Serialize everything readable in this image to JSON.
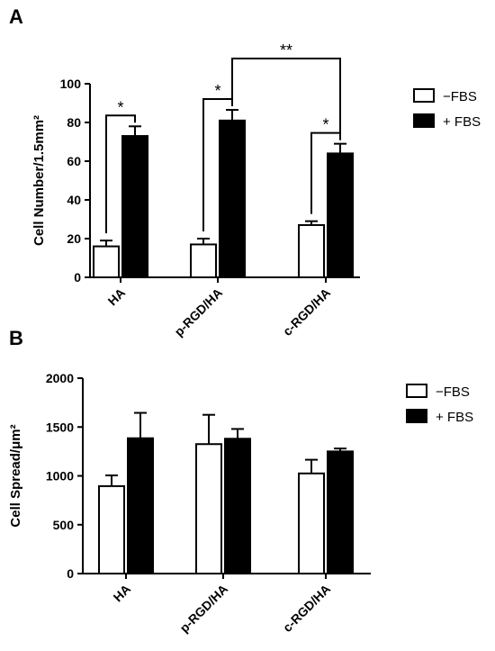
{
  "chart_data": [
    {
      "panel": "A",
      "type": "bar",
      "categories": [
        "HA",
        "p-RGD/HA",
        "c-RGD/HA"
      ],
      "ylabel": "Cell Number/1.5mm²",
      "ylim": [
        0,
        100
      ],
      "yticks": [
        0,
        20,
        40,
        60,
        80,
        100
      ],
      "legend_placement": "top-right",
      "series": [
        {
          "name": "FBS",
          "legend_label": "−FBS",
          "fill": "#ffffff",
          "values": [
            16,
            17,
            27
          ],
          "errors": [
            3,
            3,
            2
          ]
        },
        {
          "name": "+ FBS",
          "legend_label": "+ FBS",
          "fill": "#000000",
          "values": [
            73,
            81,
            64
          ],
          "errors": [
            5,
            5.5,
            5
          ]
        }
      ],
      "annotations": [
        {
          "label": "*",
          "from": [
            0,
            0
          ],
          "to": [
            0,
            1
          ]
        },
        {
          "label": "*",
          "from": [
            1,
            0
          ],
          "to": [
            1,
            1
          ]
        },
        {
          "label": "*",
          "from": [
            2,
            0
          ],
          "to": [
            2,
            1
          ]
        },
        {
          "label": "**",
          "from": [
            1,
            1
          ],
          "to": [
            2,
            1
          ]
        }
      ]
    },
    {
      "panel": "B",
      "type": "bar",
      "categories": [
        "HA",
        "p-RGD/HA",
        "c-RGD/HA"
      ],
      "ylabel": "Cell Spread/μm²",
      "ylim": [
        0,
        2000
      ],
      "yticks": [
        0,
        500,
        1000,
        1500,
        2000
      ],
      "legend_placement": "top-right",
      "series": [
        {
          "name": "FBS",
          "legend_label": "−FBS",
          "fill": "#ffffff",
          "values": [
            895,
            1325,
            1025
          ],
          "errors": [
            110,
            300,
            140
          ]
        },
        {
          "name": "+ FBS",
          "legend_label": "+ FBS",
          "fill": "#000000",
          "values": [
            1385,
            1380,
            1250
          ],
          "errors": [
            260,
            100,
            30
          ]
        }
      ]
    }
  ],
  "panel_labels": [
    "A",
    "B"
  ]
}
